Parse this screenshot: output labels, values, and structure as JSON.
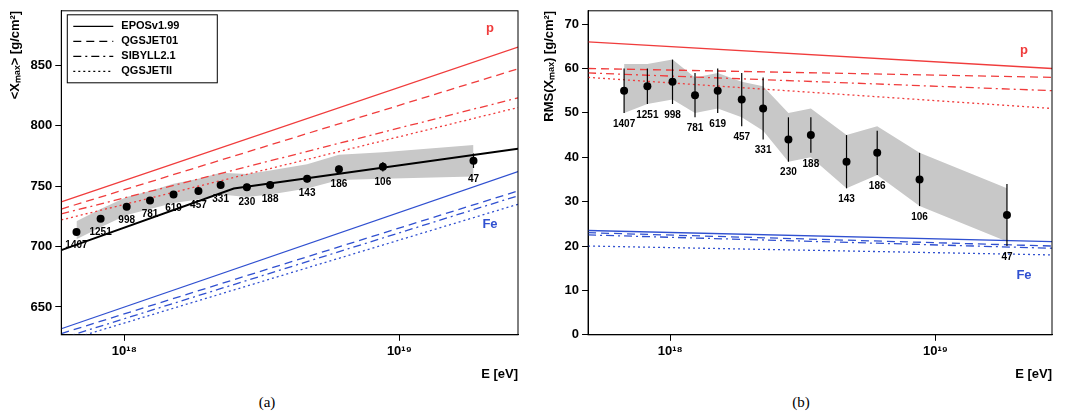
{
  "chart_data": [
    {
      "type": "scatter",
      "subtitle": "(a)",
      "x_label": "E [eV]",
      "y_label": "<Xₘₐₓ> [g/cm²]",
      "log": "x",
      "grid": false,
      "legend": "top-left",
      "xlim": [
        5.9e+17,
        2.7e+19
      ],
      "xticks": [
        {
          "value": 1e+18,
          "label": "10¹⁸"
        },
        {
          "value": 1e+19,
          "label": "10¹⁹"
        }
      ],
      "ylim": [
        627,
        895
      ],
      "yticks": [
        650,
        700,
        750,
        800,
        850
      ],
      "models": [
        {
          "name": "EPOSv1.99",
          "line_style": "solid"
        },
        {
          "name": "QGSJET01",
          "line_style": "dashed"
        },
        {
          "name": "SIBYLL2.1",
          "line_style": "dashdot"
        },
        {
          "name": "QGSJETII",
          "line_style": "dotted"
        }
      ],
      "series": [
        {
          "name": "p",
          "color": "#f03c3c",
          "lines": [
            {
              "model": "EPOSv1.99",
              "x": [
                5.9e+17,
                2.7e+19
              ],
              "values": [
                737,
                865
              ]
            },
            {
              "model": "QGSJET01",
              "x": [
                5.9e+17,
                2.7e+19
              ],
              "values": [
                731,
                847
              ]
            },
            {
              "model": "SIBYLL2.1",
              "x": [
                5.9e+17,
                2.7e+19
              ],
              "values": [
                727,
                823
              ]
            },
            {
              "model": "QGSJETII",
              "x": [
                5.9e+17,
                2.7e+19
              ],
              "values": [
                722,
                815
              ]
            }
          ]
        },
        {
          "name": "Fe",
          "color": "#3050d0",
          "lines": [
            {
              "model": "EPOSv1.99",
              "x": [
                5.9e+17,
                2.7e+19
              ],
              "values": [
                632,
                762
              ]
            },
            {
              "model": "QGSJET01",
              "x": [
                5.9e+17,
                2.7e+19
              ],
              "values": [
                628,
                746
              ]
            },
            {
              "model": "SIBYLL2.1",
              "x": [
                5.9e+17,
                2.7e+19
              ],
              "values": [
                624,
                742
              ]
            },
            {
              "model": "QGSJETII",
              "x": [
                5.9e+17,
                2.7e+19
              ],
              "values": [
                621,
                735
              ]
            }
          ]
        }
      ],
      "fit": {
        "color": "#000000",
        "x": [
          5.9e+17,
          2.5e+18,
          2.7e+19
        ],
        "values": [
          697,
          748,
          781
        ]
      },
      "measurements": {
        "color": "#000000",
        "marker": "circle",
        "x": [
          6.7e+17,
          8.2e+17,
          1.02e+18,
          1.24e+18,
          1.51e+18,
          1.86e+18,
          2.24e+18,
          2.79e+18,
          3.39e+18,
          4.62e+18,
          6.03e+18,
          8.71e+18,
          1.86e+19
        ],
        "values": [
          712,
          723,
          733,
          738,
          743,
          746,
          751,
          749,
          751,
          756,
          764,
          766,
          771
        ],
        "errors": [
          2,
          2,
          2,
          2,
          2,
          3,
          3,
          3,
          3,
          3,
          3,
          4,
          6
        ],
        "counts": [
          1407,
          1251,
          998,
          781,
          619,
          457,
          331,
          230,
          188,
          143,
          186,
          106,
          47
        ],
        "band_low": [
          706,
          716,
          726,
          731,
          736,
          739,
          743,
          741,
          743,
          748,
          755,
          756,
          758
        ],
        "band_high": [
          721,
          731,
          741,
          746,
          752,
          756,
          761,
          760,
          763,
          768,
          776,
          778,
          784
        ],
        "band_color": "#c8c8c8"
      }
    },
    {
      "type": "scatter",
      "subtitle": "(b)",
      "x_label": "E [eV]",
      "y_label": "RMS(Xₘₐₓ) [g/cm²]",
      "log": "x",
      "grid": false,
      "xlim": [
        4.9e+17,
        2.75e+19
      ],
      "xticks": [
        {
          "value": 1e+18,
          "label": "10¹⁸"
        },
        {
          "value": 1e+19,
          "label": "10¹⁹"
        }
      ],
      "ylim": [
        0,
        73
      ],
      "yticks": [
        0,
        10,
        20,
        30,
        40,
        50,
        60,
        70
      ],
      "models": [
        {
          "name": "EPOSv1.99",
          "line_style": "solid"
        },
        {
          "name": "QGSJET01",
          "line_style": "dashed"
        },
        {
          "name": "SIBYLL2.1",
          "line_style": "dashdot"
        },
        {
          "name": "QGSJETII",
          "line_style": "dotted"
        }
      ],
      "series": [
        {
          "name": "p",
          "color": "#f03c3c",
          "lines": [
            {
              "model": "EPOSv1.99",
              "x": [
                4.9e+17,
                2.75e+19
              ],
              "values": [
                66,
                60
              ]
            },
            {
              "model": "QGSJET01",
              "x": [
                4.9e+17,
                2.75e+19
              ],
              "values": [
                60,
                58
              ]
            },
            {
              "model": "SIBYLL2.1",
              "x": [
                4.9e+17,
                2.75e+19
              ],
              "values": [
                59,
                55
              ]
            },
            {
              "model": "QGSJETII",
              "x": [
                4.9e+17,
                2.75e+19
              ],
              "values": [
                58,
                51
              ]
            }
          ]
        },
        {
          "name": "Fe",
          "color": "#3050d0",
          "lines": [
            {
              "model": "EPOSv1.99",
              "x": [
                4.9e+17,
                2.75e+19
              ],
              "values": [
                23.5,
                21
              ]
            },
            {
              "model": "QGSJET01",
              "x": [
                4.9e+17,
                2.75e+19
              ],
              "values": [
                23,
                20
              ]
            },
            {
              "model": "SIBYLL2.1",
              "x": [
                4.9e+17,
                2.75e+19
              ],
              "values": [
                22.5,
                19.5
              ]
            },
            {
              "model": "QGSJETII",
              "x": [
                4.9e+17,
                2.75e+19
              ],
              "values": [
                20,
                18
              ]
            }
          ]
        }
      ],
      "measurements": {
        "color": "#000000",
        "marker": "circle",
        "x": [
          6.7e+17,
          8.2e+17,
          1.02e+18,
          1.24e+18,
          1.51e+18,
          1.86e+18,
          2.24e+18,
          2.79e+18,
          3.39e+18,
          4.62e+18,
          6.03e+18,
          8.71e+18,
          1.86e+19
        ],
        "values": [
          55,
          56,
          57,
          54,
          55,
          53,
          51,
          44,
          45,
          39,
          41,
          35,
          27
        ],
        "errors": [
          5,
          4,
          5,
          5,
          5,
          6,
          7,
          5,
          4,
          6,
          5,
          6,
          7
        ],
        "counts": [
          1407,
          1251,
          998,
          781,
          619,
          457,
          331,
          230,
          188,
          143,
          186,
          106,
          47
        ],
        "band_low": [
          50,
          52,
          53,
          50,
          51,
          49,
          46,
          39,
          40,
          33,
          36,
          29,
          21
        ],
        "band_high": [
          61,
          61,
          62,
          58,
          59,
          57,
          56,
          50,
          51,
          45,
          47,
          41,
          33
        ],
        "band_color": "#c8c8c8"
      }
    }
  ]
}
